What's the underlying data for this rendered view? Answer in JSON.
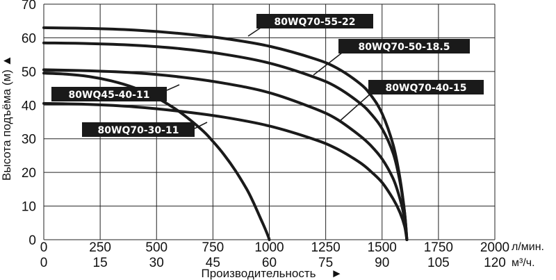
{
  "chart_data": {
    "type": "line",
    "ylabel": "Высота подъёма (м)",
    "xlabel": "Производительность",
    "y_arrow": "▲",
    "x_arrow": "►",
    "ylim": [
      0,
      70
    ],
    "xlim": [
      0,
      2000
    ],
    "y_ticks": [
      "0",
      "10",
      "20",
      "30",
      "40",
      "50",
      "60",
      "70"
    ],
    "x_ticks_primary": [
      "0",
      "250",
      "500",
      "750",
      "1000",
      "1250",
      "1500",
      "1750",
      "2000"
    ],
    "x_unit_primary": "л/мин.",
    "x_ticks_secondary": [
      "0",
      "15",
      "30",
      "45",
      "60",
      "75",
      "90",
      "105",
      "120"
    ],
    "x_unit_secondary": "м³/ч.",
    "grid": true,
    "series": [
      {
        "name": "80WQ70-55-22",
        "x": [
          0,
          200,
          400,
          600,
          800,
          1000,
          1200,
          1300,
          1400,
          1450,
          1500,
          1550,
          1580,
          1600,
          1610
        ],
        "y": [
          63,
          62.8,
          62.3,
          61.3,
          59.8,
          57.5,
          53.8,
          51,
          46.5,
          43,
          37.5,
          28,
          18,
          8,
          0
        ]
      },
      {
        "name": "80WQ70-50-18.5",
        "x": [
          0,
          200,
          400,
          600,
          800,
          1000,
          1200,
          1300,
          1400,
          1450,
          1500,
          1550,
          1580,
          1600,
          1610
        ],
        "y": [
          58.5,
          58.3,
          57.8,
          56.8,
          55.1,
          52.5,
          48.3,
          45.3,
          40.7,
          37.5,
          33,
          25.5,
          17,
          8,
          0
        ]
      },
      {
        "name": "80WQ70-40-15",
        "x": [
          0,
          200,
          400,
          600,
          800,
          1000,
          1200,
          1300,
          1400,
          1450,
          1500,
          1550,
          1580,
          1600,
          1610
        ],
        "y": [
          50.5,
          50.2,
          49.6,
          48.4,
          46.5,
          43.7,
          39,
          35.8,
          31,
          28,
          24,
          18,
          12,
          6,
          0
        ]
      },
      {
        "name": "80WQ45-40-11",
        "x": [
          0,
          100,
          200,
          300,
          400,
          500,
          600,
          700,
          750,
          800,
          850,
          900,
          930,
          960,
          980,
          995,
          1000
        ],
        "y": [
          49.5,
          49.2,
          48.5,
          47.2,
          45.2,
          42.2,
          38.1,
          32.7,
          29.2,
          25.2,
          20.5,
          15,
          11,
          6.5,
          3.5,
          1,
          0
        ]
      },
      {
        "name": "80WQ70-30-11",
        "x": [
          0,
          200,
          400,
          600,
          800,
          1000,
          1200,
          1300,
          1400,
          1450,
          1500,
          1550,
          1580,
          1600,
          1610
        ],
        "y": [
          40.5,
          40.2,
          39.5,
          38.2,
          36.4,
          33.8,
          29.8,
          27,
          23,
          20.3,
          17,
          12,
          8,
          4,
          0
        ]
      }
    ]
  }
}
